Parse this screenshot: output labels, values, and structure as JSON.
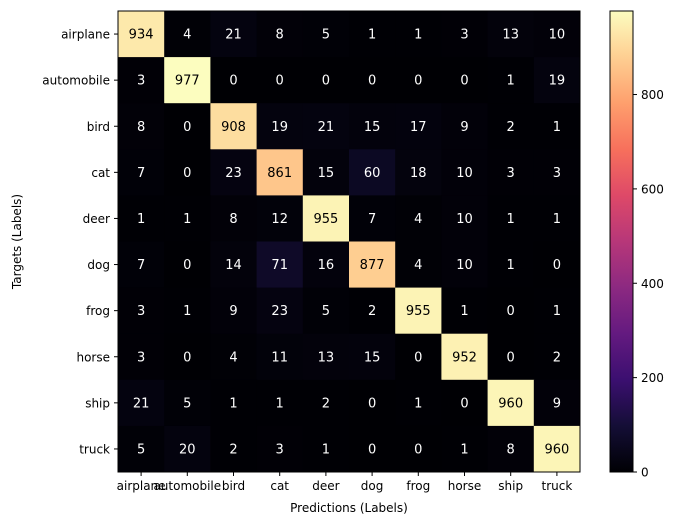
{
  "chart_data": {
    "type": "heatmap",
    "title": "",
    "xlabel": "Predictions (Labels)",
    "ylabel": "Targets (Labels)",
    "x_categories": [
      "airplane",
      "automobile",
      "bird",
      "cat",
      "deer",
      "dog",
      "frog",
      "horse",
      "ship",
      "truck"
    ],
    "y_categories": [
      "airplane",
      "automobile",
      "bird",
      "cat",
      "deer",
      "dog",
      "frog",
      "horse",
      "ship",
      "truck"
    ],
    "values": [
      [
        934,
        4,
        21,
        8,
        5,
        1,
        1,
        3,
        13,
        10
      ],
      [
        3,
        977,
        0,
        0,
        0,
        0,
        0,
        0,
        1,
        19
      ],
      [
        8,
        0,
        908,
        19,
        21,
        15,
        17,
        9,
        2,
        1
      ],
      [
        7,
        0,
        23,
        861,
        15,
        60,
        18,
        10,
        3,
        3
      ],
      [
        1,
        1,
        8,
        12,
        955,
        7,
        4,
        10,
        1,
        1
      ],
      [
        7,
        0,
        14,
        71,
        16,
        877,
        4,
        10,
        1,
        0
      ],
      [
        3,
        1,
        9,
        23,
        5,
        2,
        955,
        1,
        0,
        1
      ],
      [
        3,
        0,
        4,
        11,
        13,
        15,
        0,
        952,
        0,
        2
      ],
      [
        21,
        5,
        1,
        1,
        2,
        0,
        1,
        0,
        960,
        9
      ],
      [
        5,
        20,
        2,
        3,
        1,
        0,
        0,
        1,
        8,
        960
      ]
    ],
    "colormap": "magma",
    "color_range": [
      0,
      977
    ],
    "colorbar_ticks": [
      0,
      200,
      400,
      600,
      800
    ],
    "grid": false
  }
}
